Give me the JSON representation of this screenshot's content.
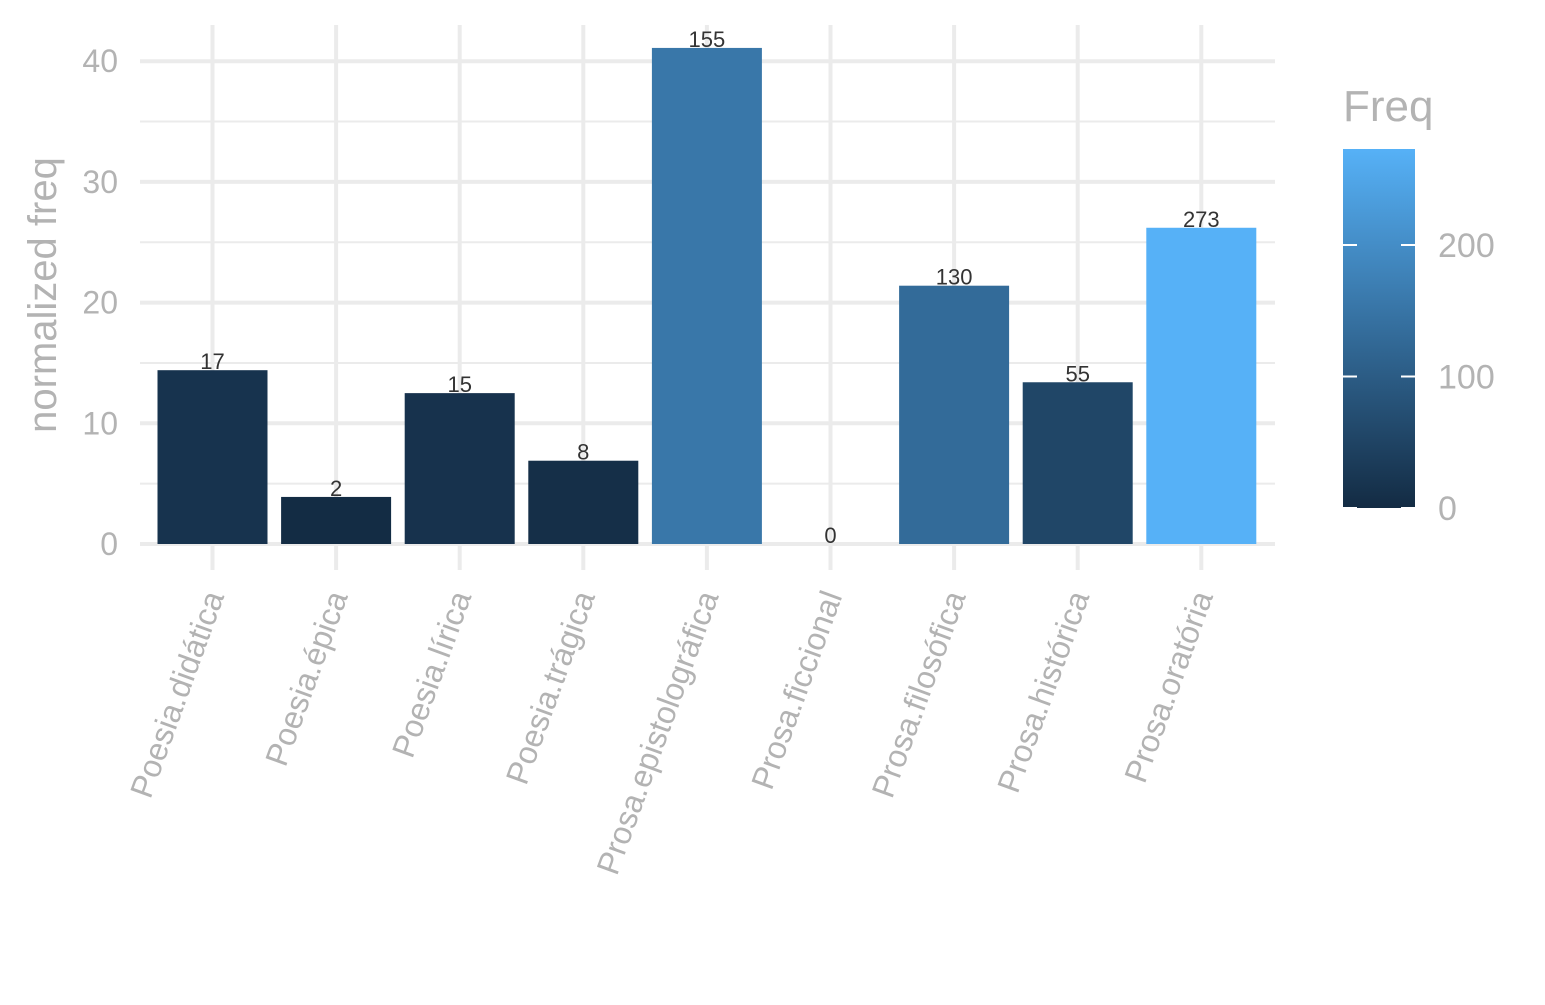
{
  "chart_data": {
    "type": "bar",
    "categories": [
      "Poesia.didática",
      "Poesia.épica",
      "Poesia.lírica",
      "Poesia.trágica",
      "Prosa.epistolográfica",
      "Prosa.ficcional",
      "Prosa.filosófica",
      "Prosa.histórica",
      "Prosa.oratória"
    ],
    "values": [
      14.4,
      3.9,
      12.5,
      6.9,
      41.1,
      0,
      21.4,
      13.4,
      26.2
    ],
    "freq": [
      17,
      2,
      15,
      8,
      155,
      0,
      130,
      55,
      273
    ],
    "data_labels": [
      "17",
      "2",
      "15",
      "8",
      "155",
      "0",
      "130",
      "55",
      "273"
    ],
    "ylabel": "normalized freq",
    "xlabel": "",
    "ylim": [
      0,
      42
    ],
    "y_ticks": [
      0,
      10,
      20,
      30,
      40
    ],
    "y_tick_labels": [
      "0",
      "10",
      "20",
      "30",
      "40"
    ],
    "grid": true,
    "legend": {
      "title": "Freq",
      "type": "colorbar",
      "placement": "right",
      "range": [
        0,
        273
      ],
      "ticks": [
        0,
        100,
        200
      ],
      "tick_labels": [
        "0",
        "100",
        "200"
      ],
      "color_low": "#132B43",
      "color_high": "#56B1F7"
    }
  }
}
